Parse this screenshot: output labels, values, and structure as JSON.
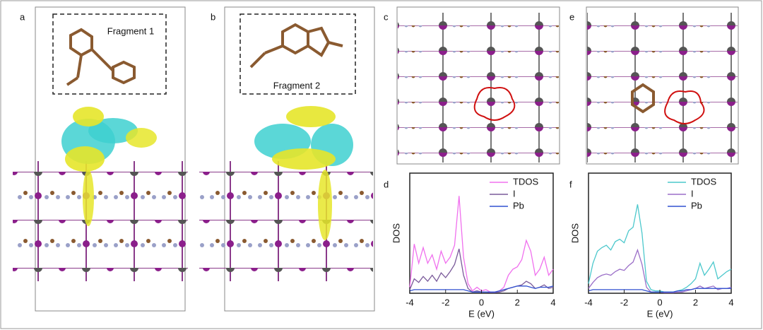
{
  "panels": {
    "a": "a",
    "b": "b",
    "c": "c",
    "d": "d",
    "e": "e",
    "f": "f"
  },
  "fragments": [
    "Fragment 1",
    "Fragment 2"
  ],
  "chart_data": [
    {
      "type": "line",
      "xlabel": "E (eV)",
      "ylabel": "DOS",
      "x": [
        -4,
        -3.75,
        -3.5,
        -3.25,
        -3,
        -2.75,
        -2.5,
        -2.25,
        -2,
        -1.75,
        -1.5,
        -1.25,
        -1,
        -0.75,
        -0.5,
        -0.25,
        0,
        0.25,
        0.5,
        0.75,
        1,
        1.25,
        1.5,
        1.75,
        2,
        2.25,
        2.5,
        2.75,
        3,
        3.25,
        3.5,
        3.75,
        4
      ],
      "xlim": [
        -4,
        4
      ],
      "xticks": [
        -4,
        -2,
        0,
        2,
        4
      ],
      "ylim": [
        0,
        10
      ],
      "legend": "upper right",
      "series": [
        {
          "name": "TDOS",
          "color": "#f070ee",
          "values": [
            0.5,
            4.1,
            2.5,
            3.8,
            2.5,
            3.2,
            2,
            3.5,
            2.5,
            3,
            4,
            8.1,
            3,
            0.8,
            0.2,
            0.5,
            0.2,
            0.3,
            0.1,
            0.1,
            0.2,
            0.5,
            1.5,
            2,
            2.2,
            2.8,
            4.4,
            3.5,
            1.5,
            2,
            3,
            1.5,
            2
          ]
        },
        {
          "name": "I",
          "color": "#7a5a9a",
          "values": [
            0.3,
            1.2,
            0.9,
            1.4,
            1,
            1.5,
            1,
            1.7,
            1.3,
            1.8,
            2.4,
            3.7,
            1.5,
            0.4,
            0.1,
            0.2,
            0.1,
            0.1,
            0.05,
            0.05,
            0.1,
            0.2,
            0.4,
            0.5,
            0.6,
            0.7,
            1,
            0.8,
            0.4,
            0.5,
            0.7,
            0.4,
            0.5
          ]
        },
        {
          "name": "Pb",
          "color": "#3050d0",
          "values": [
            0.2,
            0.3,
            0.3,
            0.3,
            0.3,
            0.3,
            0.3,
            0.3,
            0.3,
            0.3,
            0.3,
            0.3,
            0.3,
            0.2,
            0.1,
            0.1,
            0.1,
            0.1,
            0.1,
            0.1,
            0.2,
            0.3,
            0.4,
            0.5,
            0.6,
            0.6,
            0.6,
            0.5,
            0.4,
            0.5,
            0.5,
            0.5,
            0.6
          ]
        }
      ]
    },
    {
      "type": "line",
      "xlabel": "E (eV)",
      "ylabel": "DOS",
      "x": [
        -4,
        -3.75,
        -3.5,
        -3.25,
        -3,
        -2.75,
        -2.5,
        -2.25,
        -2,
        -1.75,
        -1.5,
        -1.25,
        -1,
        -0.75,
        -0.5,
        -0.25,
        0,
        0.25,
        0.5,
        0.75,
        1,
        1.25,
        1.5,
        1.75,
        2,
        2.25,
        2.5,
        2.75,
        3,
        3.25,
        3.5,
        3.75,
        4
      ],
      "xlim": [
        -4,
        4
      ],
      "xticks": [
        -4,
        -2,
        0,
        2,
        4
      ],
      "ylim": [
        0,
        10
      ],
      "legend": "upper right",
      "series": [
        {
          "name": "TDOS",
          "color": "#4cc8cc",
          "values": [
            0.8,
            2.5,
            3.5,
            3.8,
            4,
            3.6,
            4.3,
            4.5,
            4.2,
            5.2,
            5.5,
            7.4,
            5,
            1,
            0.3,
            0.2,
            0.2,
            0.1,
            0.1,
            0.1,
            0.2,
            0.3,
            0.5,
            0.8,
            1.2,
            2.5,
            1.5,
            2,
            2.6,
            1.2,
            1.5,
            1.8,
            2
          ]
        },
        {
          "name": "I",
          "color": "#9b6fc8",
          "values": [
            0.4,
            0.9,
            1.3,
            1.5,
            1.6,
            1.5,
            1.8,
            2,
            1.9,
            2.3,
            2.6,
            3.6,
            2.4,
            0.5,
            0.1,
            0.1,
            0.1,
            0.05,
            0.05,
            0.05,
            0.1,
            0.1,
            0.2,
            0.3,
            0.4,
            0.6,
            0.4,
            0.5,
            0.6,
            0.3,
            0.4,
            0.4,
            0.5
          ]
        },
        {
          "name": "Pb",
          "color": "#3050d0",
          "values": [
            0.2,
            0.3,
            0.3,
            0.3,
            0.3,
            0.3,
            0.3,
            0.3,
            0.3,
            0.3,
            0.3,
            0.3,
            0.3,
            0.2,
            0.1,
            0.1,
            0.1,
            0.1,
            0.1,
            0.1,
            0.2,
            0.2,
            0.3,
            0.3,
            0.4,
            0.4,
            0.4,
            0.4,
            0.4,
            0.4,
            0.4,
            0.4,
            0.4
          ]
        }
      ]
    }
  ]
}
